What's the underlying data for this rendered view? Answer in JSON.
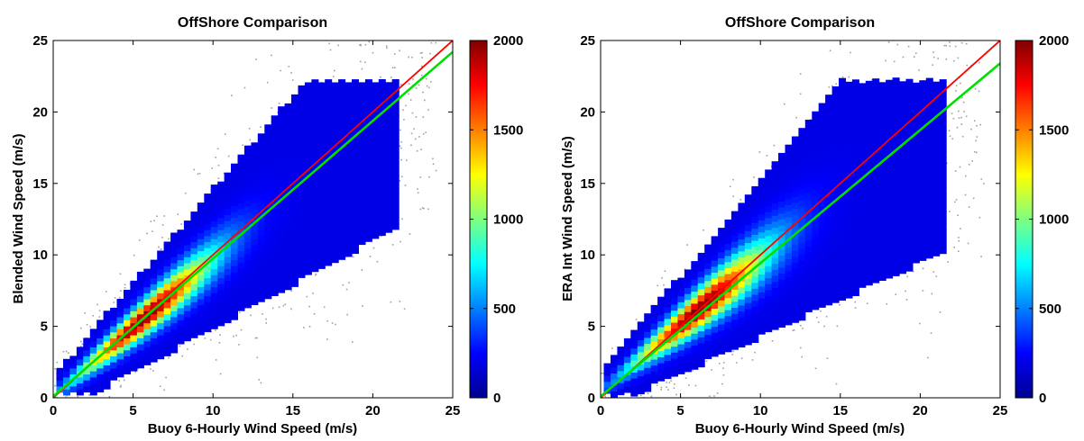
{
  "chart_data": [
    {
      "type": "heatmap",
      "title": "OffShore Comparison",
      "xlabel": "Buoy 6-Hourly Wind Speed  (m/s)",
      "ylabel": "Blended Wind Speed  (m/s)",
      "xlim": [
        0,
        25
      ],
      "ylim": [
        0,
        25
      ],
      "xticks": [
        "0",
        "5",
        "10",
        "15",
        "20",
        "25"
      ],
      "yticks": [
        "0",
        "5",
        "10",
        "15",
        "20",
        "25"
      ],
      "grid": false,
      "colorbar": {
        "range": [
          0,
          2000
        ],
        "ticks": [
          "0",
          "500",
          "1000",
          "1500",
          "2000"
        ],
        "colormap": "jet"
      },
      "lines": [
        {
          "color": "#ff0000",
          "x": [
            0,
            25
          ],
          "y": [
            0,
            25
          ]
        },
        {
          "color": "#00e000",
          "x": [
            0,
            25
          ],
          "y": [
            0.1,
            24.2
          ]
        }
      ]
    },
    {
      "type": "heatmap",
      "title": "OffShore Comparison",
      "xlabel": "Buoy 6-Hourly Wind Speed  (m/s)",
      "ylabel": "ERA Int Wind Speed  (m/s)",
      "xlim": [
        0,
        25
      ],
      "ylim": [
        0,
        25
      ],
      "xticks": [
        "0",
        "5",
        "10",
        "15",
        "20",
        "25"
      ],
      "yticks": [
        "0",
        "5",
        "10",
        "15",
        "20",
        "25"
      ],
      "grid": false,
      "colorbar": {
        "range": [
          0,
          2000
        ],
        "ticks": [
          "0",
          "500",
          "1000",
          "1500",
          "2000"
        ],
        "colormap": "jet"
      },
      "lines": [
        {
          "color": "#ff0000",
          "x": [
            0,
            25
          ],
          "y": [
            0,
            25
          ]
        },
        {
          "color": "#00e000",
          "x": [
            0,
            25
          ],
          "y": [
            0.1,
            23.4
          ]
        }
      ]
    }
  ]
}
